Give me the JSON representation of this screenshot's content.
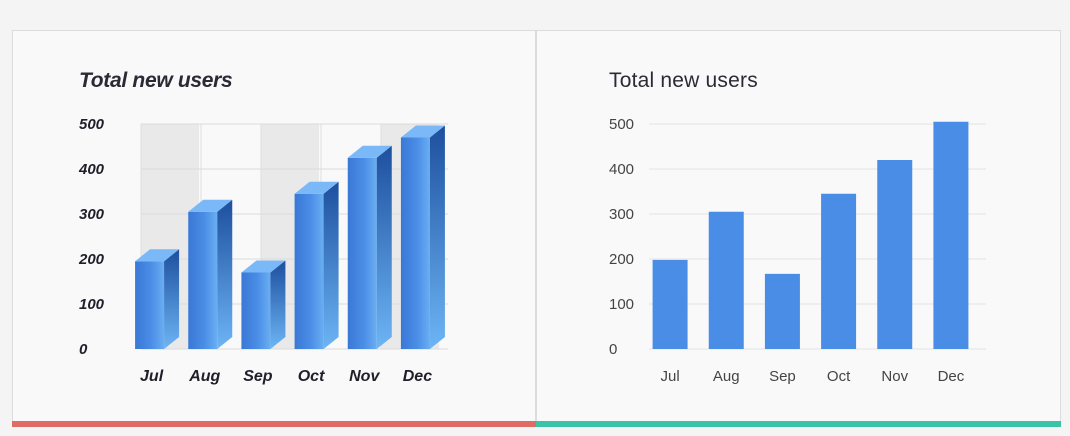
{
  "chart_data": [
    {
      "type": "bar",
      "style": "3d",
      "title": "Total new users",
      "categories": [
        "Jul",
        "Aug",
        "Sep",
        "Oct",
        "Nov",
        "Dec"
      ],
      "values": [
        195,
        305,
        170,
        345,
        425,
        470
      ],
      "yticks": [
        0,
        100,
        200,
        300,
        400,
        500
      ],
      "ylim": [
        0,
        500
      ],
      "grid": true,
      "color": "#4a8de6",
      "accent_color": "#e06a66"
    },
    {
      "type": "bar",
      "style": "flat",
      "title": "Total new users",
      "categories": [
        "Jul",
        "Aug",
        "Sep",
        "Oct",
        "Nov",
        "Dec"
      ],
      "values": [
        198,
        305,
        167,
        345,
        420,
        505
      ],
      "yticks": [
        0,
        100,
        200,
        300,
        400,
        500
      ],
      "ylim": [
        0,
        500
      ],
      "grid": true,
      "color": "#4a8de6",
      "accent_color": "#3cc2a6"
    }
  ]
}
